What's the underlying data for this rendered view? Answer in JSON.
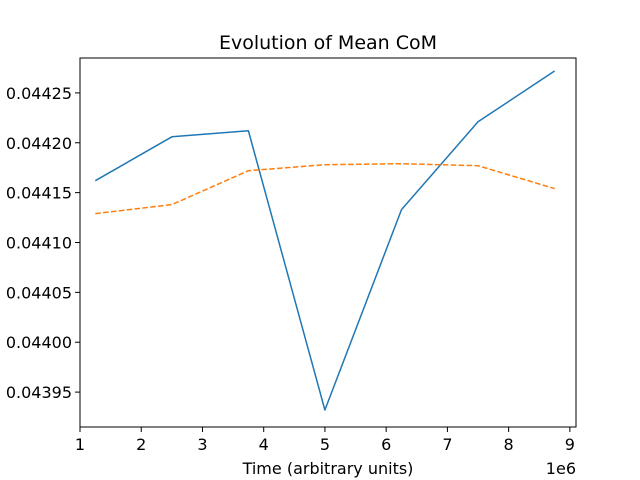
{
  "chart_data": {
    "type": "line",
    "title": "Evolution of Mean CoM",
    "xlabel": "Time (arbitrary units)",
    "ylabel": "",
    "x_offset_label": "1e6",
    "xlim": [
      1.0,
      9.1
    ],
    "ylim": [
      0.043915,
      0.044285
    ],
    "x_ticks": [
      1,
      2,
      3,
      4,
      5,
      6,
      7,
      8,
      9
    ],
    "x_tick_labels": [
      "1",
      "2",
      "3",
      "4",
      "5",
      "6",
      "7",
      "8",
      "9"
    ],
    "y_ticks": [
      0.04395,
      0.044,
      0.04405,
      0.0441,
      0.04415,
      0.0442,
      0.04425
    ],
    "y_tick_labels": [
      "0.04395",
      "0.04400",
      "0.04405",
      "0.04410",
      "0.04415",
      "0.04420",
      "0.04425"
    ],
    "grid": false,
    "legend": "none",
    "x": [
      1.25,
      2.5,
      3.75,
      5.0,
      6.25,
      7.5,
      8.75
    ],
    "series": [
      {
        "values": [
          0.044162,
          0.044206,
          0.044212,
          0.043932,
          0.044133,
          0.044221,
          0.044272
        ],
        "color": "#1f77b4",
        "style": "solid"
      },
      {
        "values": [
          0.044129,
          0.044138,
          0.044172,
          0.044178,
          0.044179,
          0.044177,
          0.044154
        ],
        "color": "#ff7f0e",
        "style": "dashed"
      }
    ]
  }
}
